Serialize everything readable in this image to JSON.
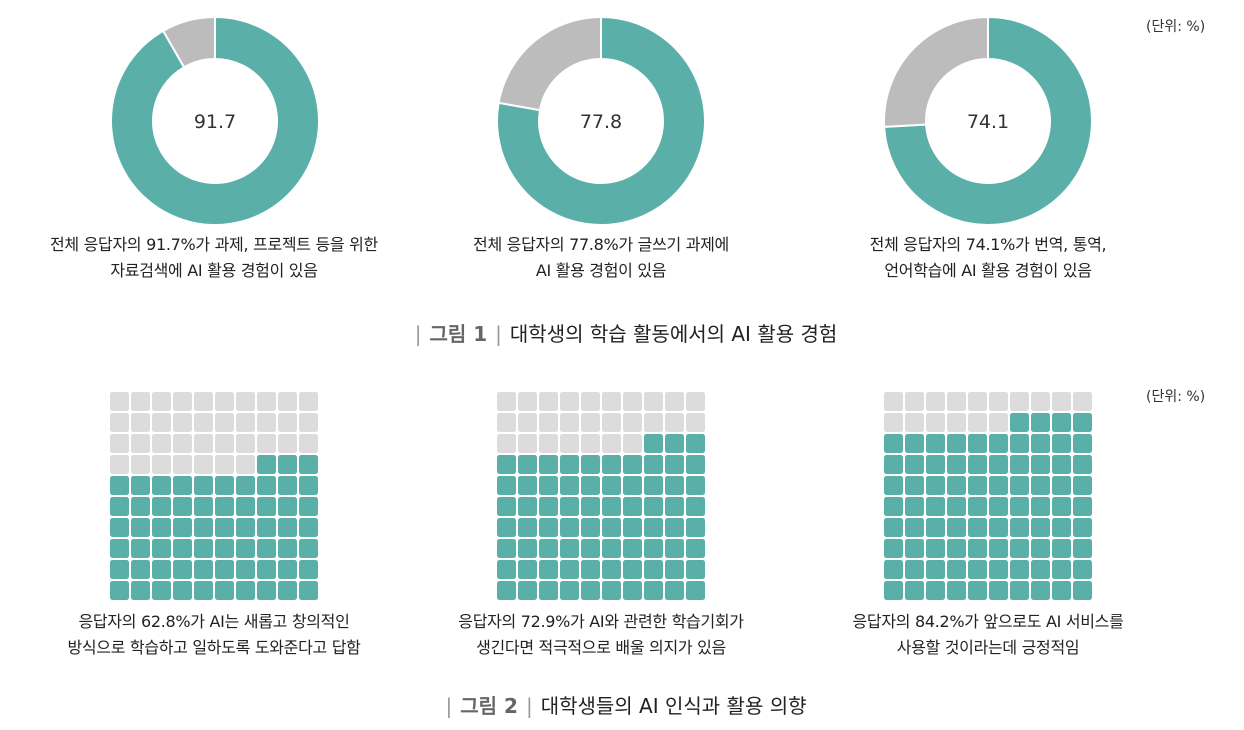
{
  "colors": {
    "teal": "#5aafa9",
    "gray_donut": "#bcbcbc",
    "gray_waffle": "#dcdcdc"
  },
  "unit_label": "(단위: %)",
  "figure1": {
    "number": "그림 1",
    "title": "대학생의 학습 활동에서의 AI 활용 경험",
    "captions": [
      [
        "전체 응답자의 91.7%가 과제, 프로젝트 등을 위한",
        "자료검색에 AI 활용 경험이 있음"
      ],
      [
        "전체 응답자의 77.8%가 글쓰기 과제에",
        "AI 활용 경험이 있음"
      ],
      [
        "전체 응답자의 74.1%가 번역, 통역,",
        "언어학습에 AI 활용 경험이 있음"
      ]
    ]
  },
  "figure2": {
    "number": "그림 2",
    "title": "대학생들의 AI 인식과 활용 의향",
    "captions": [
      [
        "응답자의 62.8%가 AI는 새롭고 창의적인",
        "방식으로 학습하고 일하도록 도와준다고 답함"
      ],
      [
        "응답자의 72.9%가 AI와 관련한 학습기회가",
        "생긴다면 적극적으로 배울 의지가 있음"
      ],
      [
        "응답자의 84.2%가 앞으로도 AI 서비스를",
        "사용할 것이라는데 긍정적임"
      ]
    ]
  },
  "chart_data": [
    {
      "type": "donut",
      "values": [
        91.7,
        8.3
      ],
      "center_label": "91.7"
    },
    {
      "type": "donut",
      "values": [
        77.8,
        22.2
      ],
      "center_label": "77.8"
    },
    {
      "type": "donut",
      "values": [
        74.1,
        25.9
      ],
      "center_label": "74.1"
    },
    {
      "type": "waffle",
      "grid": [
        10,
        10
      ],
      "value": 62.8,
      "filled_cells": 63
    },
    {
      "type": "waffle",
      "grid": [
        10,
        10
      ],
      "value": 72.9,
      "filled_cells": 73
    },
    {
      "type": "waffle",
      "grid": [
        10,
        10
      ],
      "value": 84.2,
      "filled_cells": 84
    }
  ]
}
